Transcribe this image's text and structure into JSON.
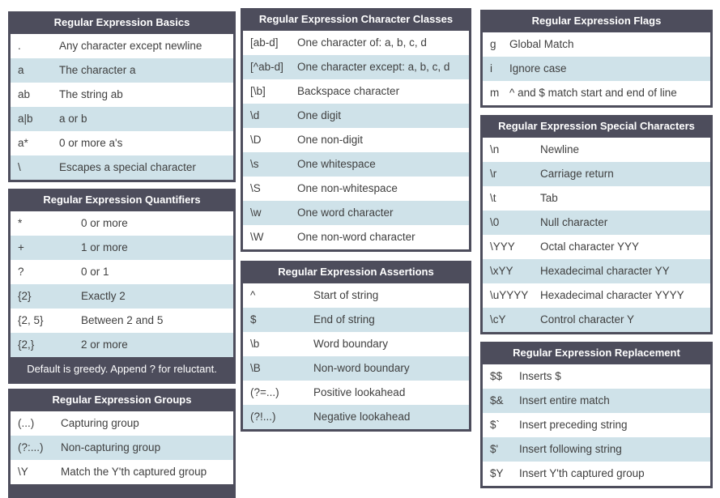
{
  "colors": {
    "header_bg": "#4d4d5c",
    "header_text": "#ffffff",
    "row_bg": "#ffffff",
    "alt_row_bg": "#cfe2e9",
    "row_text": "#3f3f3f"
  },
  "tables": [
    {
      "id": "basics",
      "title": "Regular Expression Basics",
      "rows": [
        {
          "symbol": ".",
          "description": "Any character except newline"
        },
        {
          "symbol": "a",
          "description": "The character a"
        },
        {
          "symbol": "ab",
          "description": "The string ab"
        },
        {
          "symbol": "a|b",
          "description": "a or b"
        },
        {
          "symbol": "a*",
          "description": "0 or more a's"
        },
        {
          "symbol": "\\",
          "description": "Escapes a special character"
        }
      ]
    },
    {
      "id": "quantifiers",
      "title": "Regular Expression Quantifiers",
      "note": "Default is greedy. Append ? for reluctant.",
      "rows": [
        {
          "symbol": "*",
          "description": "0 or more"
        },
        {
          "symbol": "+",
          "description": "1 or more"
        },
        {
          "symbol": "?",
          "description": "0 or 1"
        },
        {
          "symbol": "{2}",
          "description": "Exactly 2"
        },
        {
          "symbol": "{2, 5}",
          "description": "Between 2 and 5"
        },
        {
          "symbol": "{2,}",
          "description": "2 or more"
        }
      ]
    },
    {
      "id": "groups",
      "title": "Regular Expression Groups",
      "rows": [
        {
          "symbol": "(...)",
          "description": "Capturing group"
        },
        {
          "symbol": "(?:...)",
          "description": "Non-capturing group"
        },
        {
          "symbol": "\\Y",
          "description": "Match the Y'th captured group"
        }
      ]
    },
    {
      "id": "character-classes",
      "title": "Regular Expression Character Classes",
      "rows": [
        {
          "symbol": "[ab-d]",
          "description": "One character of: a, b, c, d"
        },
        {
          "symbol": "[^ab-d]",
          "description": "One character except: a, b, c, d"
        },
        {
          "symbol": "[\\b]",
          "description": "Backspace character"
        },
        {
          "symbol": "\\d",
          "description": "One digit"
        },
        {
          "symbol": "\\D",
          "description": "One non-digit"
        },
        {
          "symbol": "\\s",
          "description": "One whitespace"
        },
        {
          "symbol": "\\S",
          "description": "One non-whitespace"
        },
        {
          "symbol": "\\w",
          "description": "One word character"
        },
        {
          "symbol": "\\W",
          "description": "One non-word character"
        }
      ]
    },
    {
      "id": "assertions",
      "title": "Regular Expression Assertions",
      "rows": [
        {
          "symbol": "^",
          "description": "Start of string"
        },
        {
          "symbol": "$",
          "description": "End of string"
        },
        {
          "symbol": "\\b",
          "description": "Word boundary"
        },
        {
          "symbol": "\\B",
          "description": "Non-word boundary"
        },
        {
          "symbol": "(?=...)",
          "description": "Positive lookahead"
        },
        {
          "symbol": "(?!...)",
          "description": "Negative lookahead"
        }
      ]
    },
    {
      "id": "flags",
      "title": "Regular Expression Flags",
      "rows": [
        {
          "symbol": "g",
          "description": "Global Match"
        },
        {
          "symbol": "i",
          "description": "Ignore case"
        },
        {
          "symbol": "m",
          "description": "^ and $ match start and end of line"
        }
      ]
    },
    {
      "id": "special-characters",
      "title": "Regular Expression Special Characters",
      "rows": [
        {
          "symbol": "\\n",
          "description": "Newline"
        },
        {
          "symbol": "\\r",
          "description": "Carriage return"
        },
        {
          "symbol": "\\t",
          "description": "Tab"
        },
        {
          "symbol": "\\0",
          "description": "Null character"
        },
        {
          "symbol": "\\YYY",
          "description": "Octal character YYY"
        },
        {
          "symbol": "\\xYY",
          "description": "Hexadecimal character YY"
        },
        {
          "symbol": "\\uYYYY",
          "description": "Hexadecimal character YYYY"
        },
        {
          "symbol": "\\cY",
          "description": "Control character Y"
        }
      ]
    },
    {
      "id": "replacement",
      "title": "Regular Expression Replacement",
      "rows": [
        {
          "symbol": "$$",
          "description": "Inserts $"
        },
        {
          "symbol": "$&",
          "description": "Insert entire match"
        },
        {
          "symbol": "$`",
          "description": "Insert preceding string"
        },
        {
          "symbol": "$'",
          "description": "Insert following string"
        },
        {
          "symbol": "$Y",
          "description": "Insert Y'th captured group"
        }
      ]
    }
  ]
}
